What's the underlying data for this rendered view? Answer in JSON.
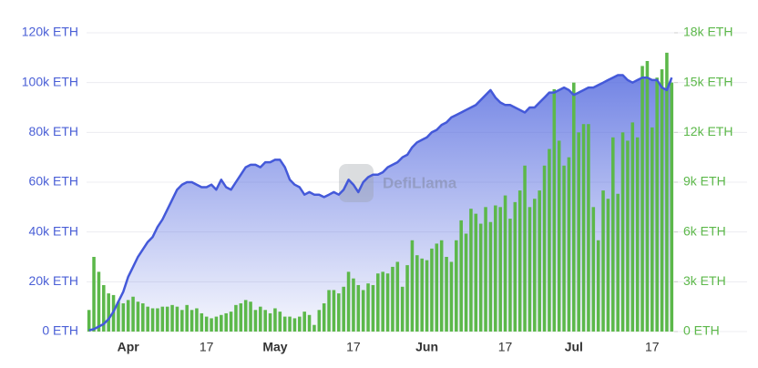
{
  "chart_data": {
    "type": "combo",
    "watermark": "DefiLlama",
    "categories": [
      null,
      null,
      null,
      null,
      null,
      null,
      null,
      null,
      "Apr",
      null,
      null,
      null,
      null,
      null,
      null,
      null,
      null,
      null,
      null,
      null,
      null,
      null,
      null,
      null,
      "17",
      null,
      null,
      null,
      null,
      null,
      null,
      null,
      null,
      null,
      null,
      null,
      null,
      null,
      "May",
      null,
      null,
      null,
      null,
      null,
      null,
      null,
      null,
      null,
      null,
      null,
      null,
      null,
      null,
      null,
      "17",
      null,
      null,
      null,
      null,
      null,
      null,
      null,
      null,
      null,
      null,
      null,
      null,
      null,
      null,
      "Jun",
      null,
      null,
      null,
      null,
      null,
      null,
      null,
      null,
      null,
      null,
      null,
      null,
      null,
      null,
      null,
      "17",
      null,
      null,
      null,
      null,
      null,
      null,
      null,
      null,
      null,
      null,
      null,
      null,
      null,
      "Jul",
      null,
      null,
      null,
      null,
      null,
      null,
      null,
      null,
      null,
      null,
      null,
      null,
      null,
      null,
      null,
      "17",
      null,
      null,
      null,
      null
    ],
    "ylim": [
      0,
      120000
    ],
    "yticks": [
      {
        "value": 0,
        "label": "0 ETH"
      },
      {
        "value": 20000,
        "label": "20k ETH"
      },
      {
        "value": 40000,
        "label": "40k ETH"
      },
      {
        "value": 60000,
        "label": "60k ETH"
      },
      {
        "value": 80000,
        "label": "80k ETH"
      },
      {
        "value": 100000,
        "label": "100k ETH"
      },
      {
        "value": 120000,
        "label": "120k ETH"
      }
    ],
    "y2lim": [
      0,
      18000
    ],
    "y2ticks": [
      {
        "value": 0,
        "label": "0 ETH"
      },
      {
        "value": 3000,
        "label": "3k ETH"
      },
      {
        "value": 6000,
        "label": "6k ETH"
      },
      {
        "value": 9000,
        "label": "9k ETH"
      },
      {
        "value": 12000,
        "label": "12k ETH"
      },
      {
        "value": 15000,
        "label": "15k ETH"
      },
      {
        "value": 18000,
        "label": "18k ETH"
      }
    ],
    "grid": true,
    "series": [
      {
        "type": "bar",
        "axis": "y2",
        "color": "#5cb84a",
        "values": [
          1300,
          4500,
          3600,
          2800,
          2300,
          2200,
          1800,
          1700,
          1900,
          2100,
          1800,
          1700,
          1500,
          1400,
          1400,
          1500,
          1500,
          1600,
          1500,
          1300,
          1600,
          1300,
          1400,
          1100,
          900,
          800,
          900,
          1000,
          1100,
          1200,
          1600,
          1700,
          1900,
          1800,
          1300,
          1500,
          1300,
          1100,
          1400,
          1200,
          900,
          900,
          800,
          900,
          1200,
          1000,
          400,
          1300,
          1700,
          2500,
          2500,
          2300,
          2700,
          3600,
          3200,
          2800,
          2500,
          2900,
          2800,
          3500,
          3600,
          3500,
          3900,
          4200,
          2700,
          4000,
          5500,
          4600,
          4400,
          4300,
          5000,
          5300,
          5500,
          4500,
          4200,
          5500,
          6700,
          5900,
          7400,
          7100,
          6500,
          7500,
          6600,
          7600,
          7500,
          8200,
          6800,
          7800,
          8500,
          10000,
          7500,
          8000,
          8500,
          10000,
          11000,
          14600,
          11500,
          10000,
          10500,
          15000,
          12000,
          12500,
          12500,
          7500,
          5500,
          8500,
          8000,
          11700,
          8300,
          12000,
          11500,
          12600,
          11700,
          16000,
          16300,
          12300,
          15300,
          15800,
          16800,
          15000
        ]
      },
      {
        "type": "line",
        "axis": "y",
        "color": "#4459d9",
        "values": [
          500,
          1000,
          2000,
          3000,
          5000,
          8000,
          12000,
          16000,
          22000,
          26000,
          30000,
          33000,
          36000,
          38000,
          42000,
          45000,
          49000,
          53000,
          57000,
          59000,
          60000,
          60000,
          59000,
          58000,
          58000,
          59000,
          57000,
          61000,
          58000,
          57000,
          60000,
          63000,
          66000,
          67000,
          67000,
          66000,
          68000,
          68000,
          69000,
          69000,
          66000,
          61000,
          59000,
          58000,
          55000,
          56000,
          55000,
          55000,
          54000,
          55000,
          56000,
          55000,
          57000,
          61000,
          59000,
          56000,
          60000,
          62000,
          63000,
          63000,
          64000,
          66000,
          67000,
          68000,
          70000,
          71000,
          74000,
          76000,
          77000,
          78000,
          80000,
          81000,
          83000,
          84000,
          86000,
          87000,
          88000,
          89000,
          90000,
          91000,
          93000,
          95000,
          97000,
          94000,
          92000,
          91000,
          91000,
          90000,
          89000,
          88000,
          90000,
          90000,
          92000,
          94000,
          96000,
          96000,
          97000,
          98000,
          97000,
          95000,
          96000,
          97000,
          98000,
          98000,
          99000,
          100000,
          101000,
          102000,
          103000,
          103000,
          101000,
          100000,
          101000,
          102000,
          102000,
          101000,
          101000,
          98000,
          97000,
          102000
        ]
      }
    ]
  }
}
